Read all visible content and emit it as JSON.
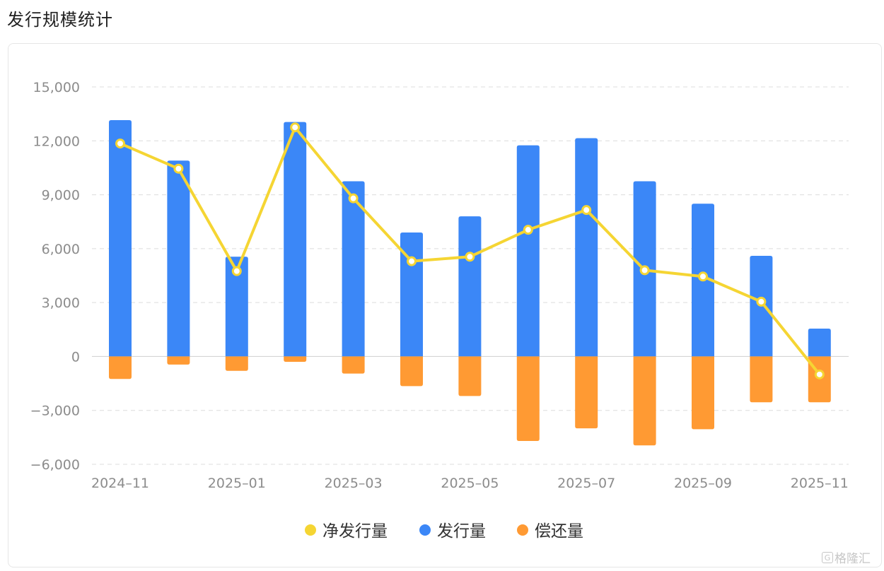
{
  "page": {
    "title": "发行规模统计"
  },
  "watermark": {
    "text": "格隆汇",
    "icon": "G"
  },
  "chart_data": {
    "type": "bar",
    "title": "",
    "xlabel": "",
    "ylabel": "",
    "categories": [
      "2024-11",
      "2024-12",
      "2025-01",
      "2025-02",
      "2025-03",
      "2025-04",
      "2025-05",
      "2025-06",
      "2025-07",
      "2025-08",
      "2025-09",
      "2025-10",
      "2025-11"
    ],
    "x_tick_labels": [
      "2024–11",
      "2025–01",
      "2025–03",
      "2025–05",
      "2025–07",
      "2025–09",
      "2025–11"
    ],
    "x_tick_indices": [
      0,
      2,
      4,
      6,
      8,
      10,
      12
    ],
    "ylim": [
      -6000,
      15000
    ],
    "yticks": [
      15000,
      12000,
      9000,
      6000,
      3000,
      0,
      -3000,
      -6000
    ],
    "ytick_labels": [
      "15,000",
      "12,000",
      "9,000",
      "6,000",
      "3,000",
      "0",
      "−3,000",
      "−6,000"
    ],
    "grid": true,
    "legend_position": "bottom-center",
    "series": [
      {
        "name": "净发行量",
        "type": "line",
        "color": "#f5d533",
        "values": [
          11850,
          10450,
          4750,
          12750,
          8800,
          5300,
          5550,
          7050,
          8150,
          4800,
          4450,
          3050,
          -1000
        ]
      },
      {
        "name": "发行量",
        "type": "bar",
        "color": "#3b87f7",
        "values": [
          13150,
          10900,
          5550,
          13050,
          9750,
          6900,
          7800,
          11750,
          12150,
          9750,
          8500,
          5600,
          1550
        ]
      },
      {
        "name": "偿还量",
        "type": "bar",
        "color": "#ff9a33",
        "values": [
          -1250,
          -450,
          -800,
          -300,
          -950,
          -1650,
          -2200,
          -4700,
          -4000,
          -4950,
          -4050,
          -2550,
          -2550
        ]
      }
    ]
  }
}
